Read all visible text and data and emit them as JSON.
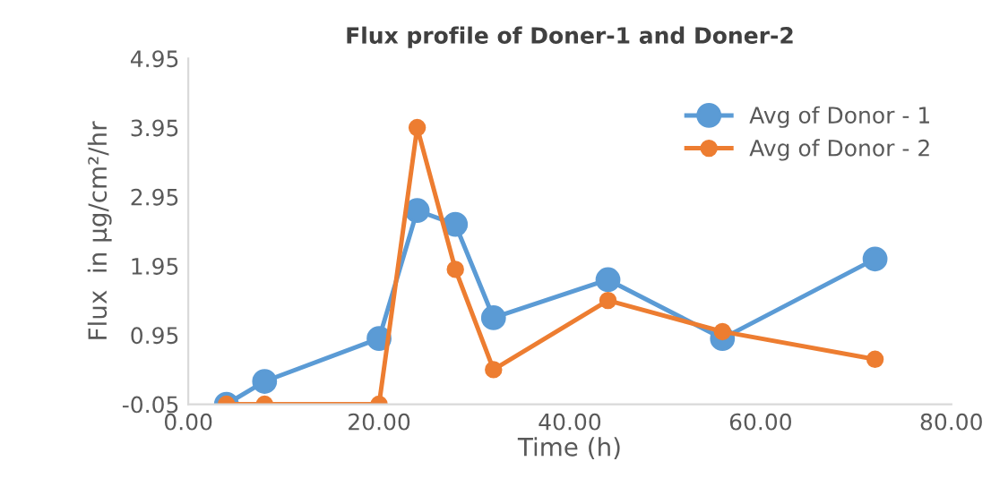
{
  "chart_data": {
    "type": "line",
    "title": "Flux profile of Doner-1 and Doner-2",
    "xlabel": "Time (h)",
    "ylabel": "Flux  in µg/cm²/hr",
    "x": [
      4,
      8,
      20,
      24,
      28,
      32,
      44,
      56,
      72
    ],
    "series": [
      {
        "name": "Avg of Donor - 1",
        "color": "#5b9bd5",
        "values": [
          -0.05,
          0.28,
          0.9,
          2.75,
          2.55,
          1.2,
          1.75,
          0.9,
          2.05
        ]
      },
      {
        "name": "Avg of Donor - 2",
        "color": "#ed7d31",
        "values": [
          -0.05,
          -0.05,
          -0.05,
          3.95,
          1.9,
          0.45,
          1.45,
          1.0,
          0.6
        ]
      }
    ],
    "xlim": [
      0,
      80
    ],
    "xticks": [
      {
        "value": 0,
        "label": "0.00"
      },
      {
        "value": 20,
        "label": "20.00"
      },
      {
        "value": 40,
        "label": "40.00"
      },
      {
        "value": 60,
        "label": "60.00"
      },
      {
        "value": 80,
        "label": "80.00"
      }
    ],
    "ylim": [
      -0.05,
      4.95
    ],
    "yticks": [
      -0.05,
      0.95,
      1.95,
      2.95,
      3.95,
      4.95
    ],
    "grid": false,
    "legend": "top right",
    "marker": "circle",
    "line_style": "solid"
  }
}
